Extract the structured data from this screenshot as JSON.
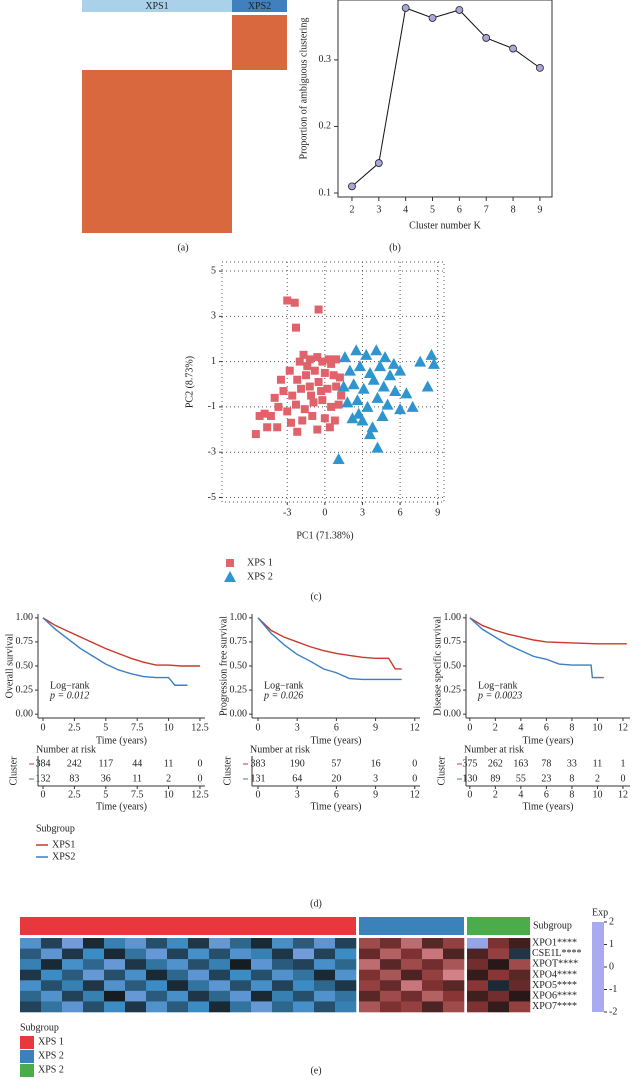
{
  "chart_data": [
    {
      "type": "consensus",
      "caption": "(a)",
      "block_color": "#d9683f",
      "clusters": [
        {
          "name": "XPS1",
          "color": "#a9d2ea"
        },
        {
          "name": "XPS2",
          "color": "#3f80bd"
        }
      ]
    },
    {
      "type": "line",
      "caption": "(b)",
      "xlabel": "Cluster number K",
      "ylabel": "Proportion of ambiguous clustering",
      "x": [
        2,
        3,
        4,
        5,
        6,
        7,
        8,
        9
      ],
      "values": [
        0.11,
        0.145,
        0.378,
        0.363,
        0.375,
        0.333,
        0.317,
        0.288
      ],
      "color": "#111111",
      "marker_color": "#a7a7d9",
      "xlim": [
        1.48,
        9.45
      ],
      "ylim": [
        0.094,
        0.39
      ],
      "xticks": [
        2,
        3,
        4,
        5,
        6,
        7,
        8,
        9
      ],
      "yticks": [
        0.1,
        0.2,
        0.3
      ]
    },
    {
      "type": "scatter",
      "caption": "(c)",
      "xlabel": "PC1 (71.38%)",
      "ylabel": "PC2 (8.73%)",
      "grid": true,
      "xlim": [
        -8.2,
        9.5
      ],
      "ylim": [
        -5.2,
        5.4
      ],
      "xticks": [
        -3,
        0,
        3,
        6,
        9
      ],
      "yticks": [
        -5,
        -3,
        -1,
        1,
        3,
        5
      ],
      "series": [
        {
          "name": "XPS 1",
          "color": "#e0636b",
          "marker": "square",
          "x": [
            -3,
            -2.4,
            -2.3,
            -0.5,
            -1.7,
            -1.2,
            -0.6,
            0.3,
            0.9,
            -2.8,
            -2.2,
            -1.5,
            -0.8,
            0,
            0.7,
            1.2,
            -3.3,
            -2.6,
            -1.9,
            -1.2,
            -0.5,
            0.2,
            0.9,
            1.3,
            -3.7,
            -3.0,
            -2.3,
            -1.6,
            -0.9,
            -0.2,
            0.5,
            1.1,
            -4.3,
            -4.8,
            -5.2,
            -3.8,
            -2.7,
            -1.8,
            -1.0,
            0,
            0.8,
            -5.5,
            -4.6,
            -2.2,
            -0.6,
            0.4,
            -1.4,
            -0.2,
            -2.0,
            0.5,
            -1.1,
            -0.3,
            -3.5,
            -4.0
          ],
          "values": [
            3.7,
            3.6,
            2.5,
            3.3,
            1.3,
            1.1,
            1.2,
            1.1,
            1.1,
            0.6,
            0.2,
            0.4,
            0.6,
            0.5,
            0.4,
            0.3,
            -0.3,
            -0.5,
            -0.2,
            -0.1,
            0.1,
            -0.2,
            -0.1,
            -0.5,
            -1.0,
            -1.2,
            -0.9,
            -1.1,
            -0.8,
            -0.7,
            -1.0,
            -0.9,
            -1.4,
            -1.3,
            -1.4,
            -1.9,
            -1.7,
            -1.6,
            -1.4,
            -1.5,
            -1.6,
            -2.2,
            -1.9,
            -2.1,
            -2.0,
            -1.9,
            0.8,
            1.0,
            1.0,
            0.9,
            -0.5,
            -0.3,
            0.2,
            -0.6
          ]
        },
        {
          "name": "XPS 2",
          "color": "#2f95cf",
          "marker": "triangle",
          "x": [
            1.6,
            2.5,
            3.3,
            4.1,
            4.8,
            5.5,
            7.6,
            8.5,
            8.7,
            2.0,
            2.8,
            3.6,
            4.4,
            5.2,
            6.0,
            1.5,
            2.3,
            3.1,
            3.9,
            4.7,
            5.6,
            6.5,
            8.2,
            1.8,
            2.6,
            3.4,
            4.2,
            5.0,
            6.0,
            7.0,
            2.2,
            3.0,
            3.8,
            4.6,
            3.6,
            4.2,
            1.1,
            2.7
          ],
          "values": [
            1.2,
            1.5,
            1.3,
            1.5,
            1.2,
            0.9,
            1.0,
            1.3,
            0.9,
            0.6,
            0.8,
            0.5,
            0.8,
            0.4,
            0.6,
            -0.1,
            0.0,
            -0.2,
            0.2,
            -0.1,
            -0.3,
            -0.4,
            -0.1,
            -0.8,
            -0.7,
            -1.0,
            -0.6,
            -0.9,
            -1.1,
            -1.0,
            -1.5,
            -1.6,
            -1.9,
            -1.4,
            -2.2,
            -2.8,
            -3.3,
            -1.3
          ]
        }
      ]
    },
    {
      "type": "km",
      "ylabel": "Overall survival",
      "xlabel": "Time (years)",
      "annotation": "Log−rank",
      "pvalue": "p = 0.012",
      "xlim": [
        -0.4,
        12.9
      ],
      "ylim": [
        -0.04,
        1.04
      ],
      "xticks": [
        0,
        2.5,
        5,
        7.5,
        10,
        12.5
      ],
      "yticks": [
        {
          "value": 0,
          "label": "0.00"
        },
        {
          "value": 0.25,
          "label": "0.25"
        },
        {
          "value": 0.5,
          "label": "0.50"
        },
        {
          "value": 0.75,
          "label": "0.75"
        },
        {
          "value": 1,
          "label": "1.00"
        }
      ],
      "series": [
        {
          "color": "#c9392a",
          "x": [
            0,
            1,
            2,
            3,
            4,
            5,
            6,
            7,
            8,
            9,
            10,
            11,
            12.5
          ],
          "values": [
            1,
            0.92,
            0.86,
            0.8,
            0.74,
            0.68,
            0.63,
            0.58,
            0.54,
            0.51,
            0.51,
            0.5,
            0.5
          ]
        },
        {
          "color": "#3a7fc1",
          "x": [
            0,
            1,
            2,
            3,
            4,
            5,
            6,
            7,
            8,
            9,
            10,
            10.5,
            11.5
          ],
          "values": [
            1,
            0.88,
            0.78,
            0.68,
            0.6,
            0.52,
            0.46,
            0.42,
            0.39,
            0.38,
            0.38,
            0.3,
            0.3
          ]
        }
      ],
      "risk_table": {
        "title": "Number at risk",
        "ylabel": "Cluster",
        "rows": [
          [
            384,
            242,
            117,
            44,
            11,
            0
          ],
          [
            132,
            83,
            36,
            11,
            2,
            0
          ]
        ]
      }
    },
    {
      "type": "km",
      "ylabel": "Progression free survival",
      "xlabel": "Time (years)",
      "annotation": "Log−rank",
      "pvalue": "p = 0.026",
      "xlim": [
        -0.46,
        12.4
      ],
      "ylim": [
        -0.04,
        1.04
      ],
      "xticks": [
        0,
        3,
        6,
        9,
        12
      ],
      "yticks": [
        {
          "value": 0,
          "label": "0.00"
        },
        {
          "value": 0.25,
          "label": "0.25"
        },
        {
          "value": 0.5,
          "label": "0.50"
        },
        {
          "value": 0.75,
          "label": "0.75"
        },
        {
          "value": 1,
          "label": "1.00"
        }
      ],
      "series": [
        {
          "color": "#c9392a",
          "x": [
            0,
            1,
            2,
            3,
            4,
            5,
            6,
            7,
            8,
            9,
            10,
            10.5,
            11
          ],
          "values": [
            1,
            0.87,
            0.8,
            0.75,
            0.7,
            0.66,
            0.63,
            0.61,
            0.59,
            0.58,
            0.58,
            0.47,
            0.47
          ]
        },
        {
          "color": "#3a7fc1",
          "x": [
            0,
            1,
            2,
            3,
            4,
            5,
            6,
            7,
            8,
            9,
            11
          ],
          "values": [
            1,
            0.84,
            0.72,
            0.62,
            0.55,
            0.47,
            0.43,
            0.37,
            0.36,
            0.36,
            0.36
          ]
        }
      ],
      "risk_table": {
        "title": "Number at risk",
        "ylabel": "Cluster",
        "rows": [
          [
            383,
            190,
            57,
            16,
            0
          ],
          [
            131,
            64,
            20,
            3,
            0
          ]
        ]
      }
    },
    {
      "type": "km",
      "ylabel": "Disease specific survival",
      "xlabel": "Time (years)",
      "annotation": "Log−rank",
      "pvalue": "p = 0.0023",
      "xlim": [
        -0.3,
        12.55
      ],
      "ylim": [
        -0.04,
        1.04
      ],
      "xticks": [
        0,
        2,
        4,
        6,
        8,
        10,
        12
      ],
      "yticks": [
        {
          "value": 0,
          "label": "0.00"
        },
        {
          "value": 0.25,
          "label": "0.25"
        },
        {
          "value": 0.5,
          "label": "0.50"
        },
        {
          "value": 0.75,
          "label": "0.75"
        },
        {
          "value": 1,
          "label": "1.00"
        }
      ],
      "series": [
        {
          "color": "#c9392a",
          "x": [
            0,
            1,
            2,
            3,
            4,
            5,
            6,
            8,
            10,
            12.3
          ],
          "values": [
            1,
            0.92,
            0.87,
            0.83,
            0.8,
            0.77,
            0.75,
            0.74,
            0.73,
            0.73
          ]
        },
        {
          "color": "#3a7fc1",
          "x": [
            0,
            1,
            2,
            3,
            4,
            5,
            6,
            7,
            8,
            9.5,
            9.6,
            10.5
          ],
          "values": [
            1,
            0.88,
            0.8,
            0.72,
            0.66,
            0.6,
            0.57,
            0.52,
            0.51,
            0.51,
            0.38,
            0.38
          ]
        }
      ],
      "risk_table": {
        "title": "Number at risk",
        "ylabel": "Cluster",
        "rows": [
          [
            375,
            262,
            163,
            78,
            33,
            11,
            1
          ],
          [
            130,
            89,
            55,
            23,
            8,
            2,
            0
          ]
        ]
      }
    },
    {
      "type": "legend",
      "title": "Subgroup",
      "caption": "(d)",
      "entries": [
        {
          "name": "XPS1",
          "color": "#c9392a"
        },
        {
          "name": "XPS2",
          "color": "#3a7fc1"
        }
      ]
    },
    {
      "type": "heatmap",
      "caption": "(e)",
      "annotation_title": "Subgroup",
      "colorbar_title": "Exp",
      "rows": [
        "XPO1****",
        "CSE1L****",
        "XPOT****",
        "XPO4****",
        "XPO5****",
        "XPO6****",
        "XPO7****"
      ],
      "clim": [
        -2,
        2
      ],
      "colors": [
        "#a9aaf0",
        "#3b8cc4",
        "#111111",
        "#8a3535",
        "#f2a2aa"
      ],
      "colorbar_ticks": [
        2,
        1,
        0,
        -1,
        -2
      ],
      "series": [
        {
          "name": "XPS 1",
          "color": "#e8383d",
          "values": [
            [
              -1.2,
              -0.4,
              -1.5,
              -0.2,
              -0.9,
              -1.3,
              -0.5,
              -1.0,
              -0.3,
              -1.4,
              -0.7,
              -0.2,
              -1.1,
              -0.6,
              -1.3,
              -0.4
            ],
            [
              -0.6,
              -1.3,
              -0.3,
              -1.0,
              -0.2,
              -0.8,
              -1.4,
              -0.4,
              -1.1,
              -0.5,
              -1.2,
              -0.9,
              -0.3,
              -1.5,
              -0.4,
              -1.0
            ],
            [
              -0.9,
              -0.2,
              -1.1,
              -0.7,
              -1.4,
              -0.3,
              -0.8,
              -1.2,
              -0.5,
              -0.9,
              -0.1,
              -1.3,
              -0.6,
              -0.4,
              -1.1,
              -0.7
            ],
            [
              -0.3,
              -1.0,
              -0.6,
              -1.4,
              -0.5,
              -1.1,
              -0.2,
              -0.7,
              -1.3,
              -0.4,
              -1.0,
              -0.5,
              -1.2,
              -0.8,
              -0.2,
              -1.2
            ],
            [
              -1.1,
              -0.5,
              -0.9,
              -0.3,
              -1.2,
              -0.6,
              -1.0,
              -0.2,
              -0.8,
              -1.3,
              -0.5,
              -1.1,
              -0.4,
              -1.0,
              -0.7,
              -0.3
            ],
            [
              -0.7,
              -1.2,
              -0.4,
              -0.9,
              -0.1,
              -1.4,
              -0.6,
              -1.1,
              -0.3,
              -0.7,
              -1.3,
              -0.2,
              -0.9,
              -0.5,
              -1.2,
              -0.8
            ],
            [
              -0.4,
              -0.8,
              -1.3,
              -0.5,
              -1.0,
              -0.3,
              -1.2,
              -0.6,
              -1.0,
              -0.2,
              -0.8,
              -1.4,
              -0.7,
              -1.1,
              -0.5,
              -0.9
            ]
          ]
        },
        {
          "name": "XPS 2",
          "color": "#3b82bd",
          "values": [
            [
              1.2,
              0.8,
              1.5,
              0.6,
              1.1
            ],
            [
              0.7,
              1.4,
              0.9,
              1.6,
              0.5
            ],
            [
              1.5,
              0.6,
              1.2,
              0.8,
              1.3
            ],
            [
              0.9,
              1.3,
              0.5,
              1.1,
              1.7
            ],
            [
              1.1,
              0.7,
              1.6,
              0.9,
              0.6
            ],
            [
              0.6,
              1.2,
              0.8,
              1.4,
              1.0
            ],
            [
              1.3,
              0.9,
              1.1,
              0.5,
              1.2
            ]
          ]
        },
        {
          "name": "XPS 2",
          "color": "#4aac4a",
          "values": [
            [
              -1.8,
              0.9,
              0.4
            ],
            [
              0.5,
              1.1,
              -0.3
            ],
            [
              0.8,
              0.2,
              1.2
            ],
            [
              0.3,
              1.0,
              0.6
            ],
            [
              1.0,
              -0.2,
              0.7
            ],
            [
              0.4,
              0.8,
              0.2
            ],
            [
              0.9,
              0.3,
              1.1
            ]
          ]
        }
      ]
    }
  ]
}
